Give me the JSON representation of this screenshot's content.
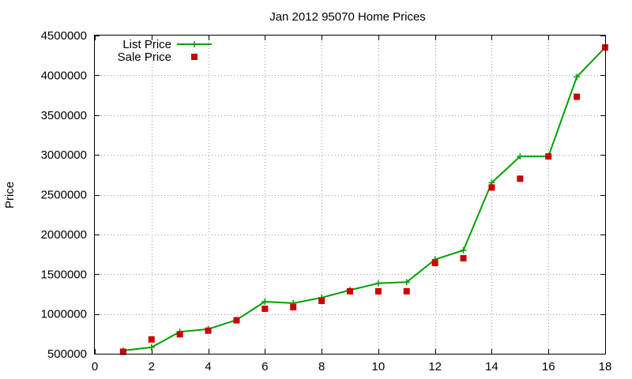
{
  "chart_data": {
    "type": "line",
    "title": "Jan 2012 95070 Home Prices",
    "xlabel": "",
    "ylabel": "Price",
    "xlim": [
      0,
      18
    ],
    "ylim": [
      500000,
      4500000
    ],
    "xticks": [
      "0",
      "2",
      "4",
      "6",
      "8",
      "10",
      "12",
      "14",
      "16",
      "18"
    ],
    "yticks": [
      "500000",
      "1000000",
      "1500000",
      "2000000",
      "2500000",
      "3000000",
      "3500000",
      "4000000",
      "4500000"
    ],
    "grid": true,
    "legend_position": "top-left",
    "x": [
      1,
      2,
      3,
      4,
      5,
      6,
      7,
      8,
      9,
      10,
      11,
      12,
      13,
      14,
      15,
      16,
      17,
      18
    ],
    "series": [
      {
        "name": "List Price",
        "style": "line+cross",
        "color": "#00a000",
        "values": [
          540000,
          580000,
          775000,
          810000,
          925000,
          1155000,
          1135000,
          1205000,
          1300000,
          1385000,
          1400000,
          1685000,
          1800000,
          2650000,
          2980000,
          2980000,
          3980000,
          4350000
        ]
      },
      {
        "name": "Sale Price",
        "style": "square-points",
        "color": "#cc0000",
        "values": [
          525000,
          680000,
          745000,
          790000,
          920000,
          1065000,
          1085000,
          1165000,
          1285000,
          1285000,
          1285000,
          1640000,
          1700000,
          2590000,
          2700000,
          2980000,
          3730000,
          4350000
        ]
      }
    ]
  }
}
